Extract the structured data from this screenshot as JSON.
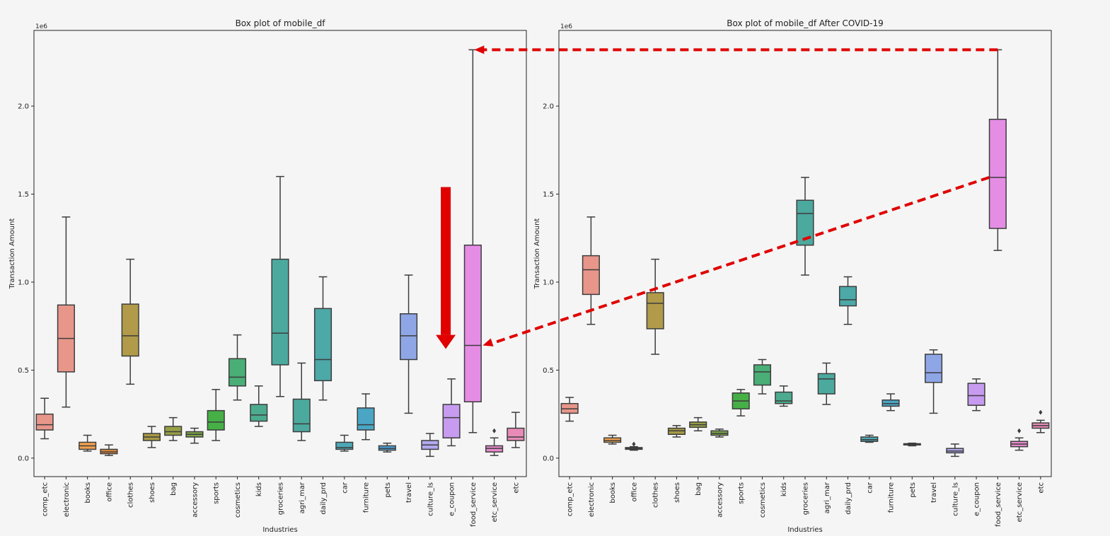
{
  "colors": {
    "background": "#f5f5f5",
    "box_edge": "#3d3d3d",
    "annotation": "#e00000",
    "palette": [
      "#e8968a",
      "#e8968a",
      "#f2a14d",
      "#e08a3c",
      "#b19a49",
      "#a79b45",
      "#97a046",
      "#7da548",
      "#46b047",
      "#4aae77",
      "#4cab8f",
      "#4ca99e",
      "#4da8a8",
      "#4da8b6",
      "#4aa6c4",
      "#4ba4d8",
      "#8fa6e6",
      "#b0a9ee",
      "#c79bef",
      "#e58de5",
      "#e88bcd",
      "#e88bb8"
    ]
  },
  "chart_data": [
    {
      "type": "box",
      "title": "Box plot of mobile_df",
      "offset_text": "1e6",
      "xlabel": "Industries",
      "ylabel": "Transaction Amount",
      "ylim": [
        -1.05,
        24.3
      ],
      "yticks": [
        0.0,
        0.5,
        1.0,
        1.5,
        2.0
      ],
      "ytick_labels": [
        "0.0",
        "0.5",
        "1.0",
        "1.5",
        "2.0"
      ],
      "categories": [
        "comp_etc",
        "electronic",
        "books",
        "office",
        "clothes",
        "shoes",
        "bag",
        "accessory",
        "sports",
        "cosmetics",
        "kids",
        "groceries",
        "agri_mar",
        "daily_prd",
        "car",
        "furniture",
        "pets",
        "travel",
        "culture_ls",
        "e_coupon",
        "food_service",
        "etc_service",
        "etc"
      ],
      "boxes": [
        {
          "whislo": 1.1,
          "q1": 1.6,
          "med": 1.9,
          "q3": 2.5,
          "whishi": 3.4,
          "fliers": []
        },
        {
          "whislo": 2.9,
          "q1": 4.9,
          "med": 6.8,
          "q3": 8.7,
          "whishi": 13.7,
          "fliers": []
        },
        {
          "whislo": 0.4,
          "q1": 0.5,
          "med": 0.7,
          "q3": 0.9,
          "whishi": 1.3,
          "fliers": []
        },
        {
          "whislo": 0.15,
          "q1": 0.25,
          "med": 0.35,
          "q3": 0.5,
          "whishi": 0.75,
          "fliers": []
        },
        {
          "whislo": 4.2,
          "q1": 5.8,
          "med": 6.95,
          "q3": 8.75,
          "whishi": 11.3,
          "fliers": []
        },
        {
          "whislo": 0.6,
          "q1": 1.0,
          "med": 1.2,
          "q3": 1.4,
          "whishi": 1.8,
          "fliers": []
        },
        {
          "whislo": 1.0,
          "q1": 1.3,
          "med": 1.5,
          "q3": 1.8,
          "whishi": 2.3,
          "fliers": []
        },
        {
          "whislo": 0.85,
          "q1": 1.2,
          "med": 1.35,
          "q3": 1.5,
          "whishi": 1.7,
          "fliers": []
        },
        {
          "whislo": 1.0,
          "q1": 1.6,
          "med": 2.05,
          "q3": 2.7,
          "whishi": 3.9,
          "fliers": []
        },
        {
          "whislo": 3.3,
          "q1": 4.1,
          "med": 4.6,
          "q3": 5.65,
          "whishi": 7.0,
          "fliers": []
        },
        {
          "whislo": 1.8,
          "q1": 2.1,
          "med": 2.45,
          "q3": 3.05,
          "whishi": 4.1,
          "fliers": []
        },
        {
          "whislo": 3.5,
          "q1": 5.3,
          "med": 7.1,
          "q3": 11.3,
          "whishi": 16.0,
          "fliers": []
        },
        {
          "whislo": 1.0,
          "q1": 1.5,
          "med": 1.95,
          "q3": 3.35,
          "whishi": 5.4,
          "fliers": []
        },
        {
          "whislo": 3.3,
          "q1": 4.4,
          "med": 5.6,
          "q3": 8.5,
          "whishi": 10.3,
          "fliers": []
        },
        {
          "whislo": 0.4,
          "q1": 0.5,
          "med": 0.6,
          "q3": 0.9,
          "whishi": 1.3,
          "fliers": []
        },
        {
          "whislo": 1.05,
          "q1": 1.6,
          "med": 1.9,
          "q3": 2.85,
          "whishi": 3.65,
          "fliers": []
        },
        {
          "whislo": 0.35,
          "q1": 0.45,
          "med": 0.55,
          "q3": 0.7,
          "whishi": 0.85,
          "fliers": []
        },
        {
          "whislo": 2.55,
          "q1": 5.6,
          "med": 6.95,
          "q3": 8.2,
          "whishi": 10.4,
          "fliers": []
        },
        {
          "whislo": 0.1,
          "q1": 0.5,
          "med": 0.75,
          "q3": 1.0,
          "whishi": 1.4,
          "fliers": []
        },
        {
          "whislo": 0.7,
          "q1": 1.15,
          "med": 2.3,
          "q3": 3.05,
          "whishi": 4.5,
          "fliers": []
        },
        {
          "whislo": 1.45,
          "q1": 3.2,
          "med": 6.4,
          "q3": 12.1,
          "whishi": 23.2,
          "fliers": []
        },
        {
          "whislo": 0.15,
          "q1": 0.35,
          "med": 0.55,
          "q3": 0.7,
          "whishi": 1.15,
          "fliers": [
            1.55
          ]
        },
        {
          "whislo": 0.6,
          "q1": 1.0,
          "med": 1.2,
          "q3": 1.7,
          "whishi": 2.6,
          "fliers": []
        }
      ]
    },
    {
      "type": "box",
      "title": "Box plot of mobile_df After COVID-19",
      "offset_text": "1e6",
      "xlabel": "Industries",
      "ylabel": "Transaction Amount",
      "ylim": [
        -1.05,
        24.3
      ],
      "yticks": [
        0.0,
        0.5,
        1.0,
        1.5,
        2.0
      ],
      "ytick_labels": [
        "0.0",
        "0.5",
        "1.0",
        "1.5",
        "2.0"
      ],
      "categories": [
        "comp_etc",
        "electronic",
        "books",
        "office",
        "clothes",
        "shoes",
        "bag",
        "accessory",
        "sports",
        "cosmetics",
        "kids",
        "groceries",
        "agri_mar",
        "daily_prd",
        "car",
        "furniture",
        "pets",
        "travel",
        "culture_ls",
        "e_coupon",
        "food_service",
        "etc_service",
        "etc"
      ],
      "boxes": [
        {
          "whislo": 2.1,
          "q1": 2.55,
          "med": 2.8,
          "q3": 3.1,
          "whishi": 3.45,
          "fliers": []
        },
        {
          "whislo": 7.6,
          "q1": 9.3,
          "med": 10.7,
          "q3": 11.5,
          "whishi": 13.7,
          "fliers": []
        },
        {
          "whislo": 0.8,
          "q1": 0.9,
          "med": 1.0,
          "q3": 1.15,
          "whishi": 1.3,
          "fliers": []
        },
        {
          "whislo": 0.45,
          "q1": 0.5,
          "med": 0.55,
          "q3": 0.6,
          "whishi": 0.65,
          "fliers": [
            0.8
          ]
        },
        {
          "whislo": 5.9,
          "q1": 7.35,
          "med": 8.8,
          "q3": 9.4,
          "whishi": 11.3,
          "fliers": []
        },
        {
          "whislo": 1.2,
          "q1": 1.35,
          "med": 1.55,
          "q3": 1.7,
          "whishi": 1.85,
          "fliers": []
        },
        {
          "whislo": 1.55,
          "q1": 1.75,
          "med": 1.9,
          "q3": 2.05,
          "whishi": 2.3,
          "fliers": []
        },
        {
          "whislo": 1.2,
          "q1": 1.3,
          "med": 1.4,
          "q3": 1.55,
          "whishi": 1.65,
          "fliers": []
        },
        {
          "whislo": 2.4,
          "q1": 2.8,
          "med": 3.25,
          "q3": 3.7,
          "whishi": 3.9,
          "fliers": []
        },
        {
          "whislo": 3.65,
          "q1": 4.15,
          "med": 4.9,
          "q3": 5.3,
          "whishi": 5.6,
          "fliers": []
        },
        {
          "whislo": 2.95,
          "q1": 3.1,
          "med": 3.25,
          "q3": 3.75,
          "whishi": 4.1,
          "fliers": []
        },
        {
          "whislo": 10.4,
          "q1": 12.1,
          "med": 13.9,
          "q3": 14.65,
          "whishi": 15.95,
          "fliers": []
        },
        {
          "whislo": 3.05,
          "q1": 3.65,
          "med": 4.5,
          "q3": 4.8,
          "whishi": 5.4,
          "fliers": []
        },
        {
          "whislo": 7.6,
          "q1": 8.65,
          "med": 9.0,
          "q3": 9.75,
          "whishi": 10.3,
          "fliers": []
        },
        {
          "whislo": 0.9,
          "q1": 0.95,
          "med": 1.05,
          "q3": 1.2,
          "whishi": 1.3,
          "fliers": []
        },
        {
          "whislo": 2.7,
          "q1": 2.95,
          "med": 3.1,
          "q3": 3.3,
          "whishi": 3.65,
          "fliers": []
        },
        {
          "whislo": 0.7,
          "q1": 0.75,
          "med": 0.8,
          "q3": 0.82,
          "whishi": 0.85,
          "fliers": []
        },
        {
          "whislo": 2.55,
          "q1": 4.3,
          "med": 4.85,
          "q3": 5.9,
          "whishi": 6.15,
          "fliers": []
        },
        {
          "whislo": 0.1,
          "q1": 0.3,
          "med": 0.4,
          "q3": 0.55,
          "whishi": 0.8,
          "fliers": []
        },
        {
          "whislo": 2.7,
          "q1": 3.0,
          "med": 3.55,
          "q3": 4.25,
          "whishi": 4.5,
          "fliers": []
        },
        {
          "whislo": 11.8,
          "q1": 13.05,
          "med": 15.95,
          "q3": 19.25,
          "whishi": 23.2,
          "fliers": []
        },
        {
          "whislo": 0.45,
          "q1": 0.65,
          "med": 0.8,
          "q3": 0.95,
          "whishi": 1.15,
          "fliers": [
            1.55
          ]
        },
        {
          "whislo": 1.45,
          "q1": 1.7,
          "med": 1.85,
          "q3": 2.0,
          "whishi": 2.15,
          "fliers": [
            2.6
          ]
        }
      ]
    }
  ]
}
